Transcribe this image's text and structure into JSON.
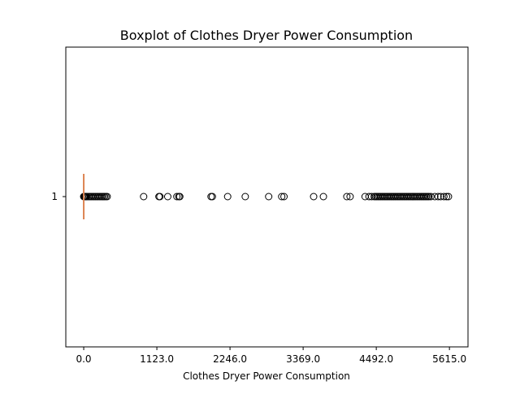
{
  "chart_data": {
    "type": "boxplot",
    "title": "Boxplot of Clothes Dryer Power Consumption",
    "xlabel": "Clothes Dryer Power Consumption",
    "ylabel": "",
    "orientation": "horizontal",
    "xlim": [
      -275,
      5900
    ],
    "x_ticks": [
      0.0,
      1123.0,
      2246.0,
      3369.0,
      4492.0,
      5615.0
    ],
    "x_tick_labels": [
      "0.0",
      "1123.0",
      "2246.0",
      "3369.0",
      "4492.0",
      "5615.0"
    ],
    "y_tick_labels": [
      "1"
    ],
    "grid": false,
    "series": [
      {
        "category": "1",
        "box": {
          "q1": 0,
          "median": 0,
          "q3": 0,
          "whisker_low": 0,
          "whisker_high": 0
        },
        "median_color": "#dd8452",
        "outliers": [
          0,
          5,
          10,
          15,
          20,
          25,
          30,
          40,
          60,
          80,
          100,
          120,
          140,
          160,
          180,
          200,
          220,
          240,
          260,
          280,
          300,
          320,
          340,
          360,
          920,
          1155,
          1170,
          1290,
          1430,
          1460,
          1475,
          1955,
          1975,
          2210,
          2480,
          2840,
          3040,
          3075,
          3530,
          3680,
          4040,
          4090,
          4320,
          4380,
          4420,
          4460,
          4480,
          4500,
          4520,
          4540,
          4560,
          4580,
          4600,
          4620,
          4640,
          4660,
          4680,
          4700,
          4720,
          4740,
          4760,
          4780,
          4800,
          4820,
          4840,
          4860,
          4880,
          4900,
          4920,
          4940,
          4960,
          4980,
          5000,
          5020,
          5040,
          5060,
          5080,
          5100,
          5120,
          5140,
          5160,
          5180,
          5200,
          5220,
          5240,
          5260,
          5280,
          5300,
          5330,
          5390,
          5440,
          5480,
          5530,
          5570,
          5600
        ]
      }
    ]
  }
}
